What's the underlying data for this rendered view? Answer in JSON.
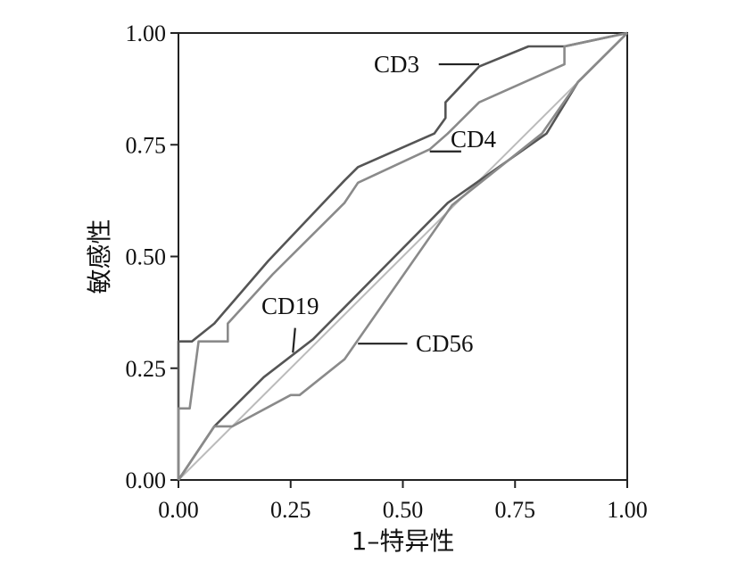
{
  "chart_data": {
    "type": "line",
    "title": "",
    "xlabel": "1–特异性",
    "ylabel": "敏感性",
    "xlim": [
      0,
      1
    ],
    "ylim": [
      0,
      1
    ],
    "x_ticks": [
      "0.00",
      "0.25",
      "0.50",
      "0.75",
      "1.00"
    ],
    "y_ticks": [
      "0.00",
      "0.25",
      "0.50",
      "0.75",
      "1.00"
    ],
    "grid": false,
    "series": [
      {
        "name": "CD3",
        "color": "#555555",
        "points": [
          [
            0,
            0
          ],
          [
            0,
            0.31
          ],
          [
            0.03,
            0.31
          ],
          [
            0.08,
            0.35
          ],
          [
            0.2,
            0.49
          ],
          [
            0.37,
            0.67
          ],
          [
            0.4,
            0.7
          ],
          [
            0.57,
            0.775
          ],
          [
            0.595,
            0.81
          ],
          [
            0.595,
            0.845
          ],
          [
            0.67,
            0.925
          ],
          [
            0.78,
            0.97
          ],
          [
            0.86,
            0.97
          ],
          [
            1,
            1
          ]
        ]
      },
      {
        "name": "CD4",
        "color": "#8a8a8a",
        "points": [
          [
            0,
            0
          ],
          [
            0,
            0.16
          ],
          [
            0.025,
            0.16
          ],
          [
            0.045,
            0.31
          ],
          [
            0.11,
            0.31
          ],
          [
            0.11,
            0.35
          ],
          [
            0.21,
            0.46
          ],
          [
            0.37,
            0.62
          ],
          [
            0.4,
            0.665
          ],
          [
            0.56,
            0.74
          ],
          [
            0.6,
            0.775
          ],
          [
            0.67,
            0.845
          ],
          [
            0.86,
            0.93
          ],
          [
            0.86,
            0.97
          ],
          [
            1,
            1
          ]
        ]
      },
      {
        "name": "CD19",
        "color": "#555555",
        "points": [
          [
            0,
            0
          ],
          [
            0.08,
            0.12
          ],
          [
            0.19,
            0.23
          ],
          [
            0.3,
            0.315
          ],
          [
            0.6,
            0.62
          ],
          [
            0.82,
            0.775
          ],
          [
            0.89,
            0.89
          ],
          [
            1,
            1
          ]
        ]
      },
      {
        "name": "CD56",
        "color": "#8a8a8a",
        "points": [
          [
            0,
            0
          ],
          [
            0.08,
            0.12
          ],
          [
            0.12,
            0.12
          ],
          [
            0.25,
            0.19
          ],
          [
            0.27,
            0.19
          ],
          [
            0.37,
            0.27
          ],
          [
            0.61,
            0.615
          ],
          [
            0.81,
            0.775
          ],
          [
            0.89,
            0.89
          ],
          [
            1,
            1
          ]
        ]
      },
      {
        "name": "reference",
        "color": "#bbbbbb",
        "points": [
          [
            0,
            0
          ],
          [
            1,
            1
          ]
        ]
      }
    ],
    "annotations": [
      {
        "series": "CD3",
        "text": "CD3"
      },
      {
        "series": "CD4",
        "text": "CD4"
      },
      {
        "series": "CD19",
        "text": "CD19"
      },
      {
        "series": "CD56",
        "text": "CD56"
      }
    ]
  }
}
